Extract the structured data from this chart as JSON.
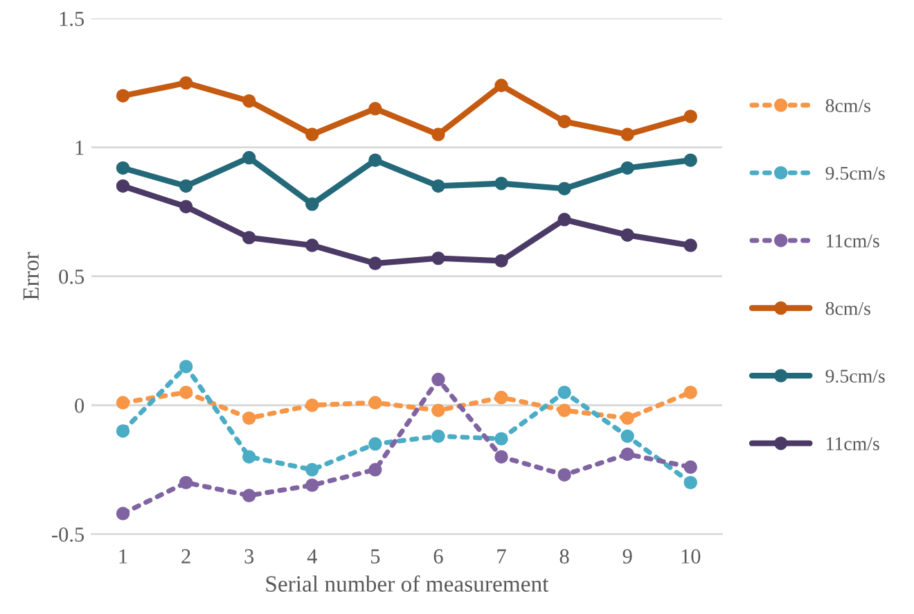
{
  "chart_data": {
    "type": "line",
    "xlabel": "Serial number of measurement",
    "ylabel": "Error",
    "categories": [
      "1",
      "2",
      "3",
      "4",
      "5",
      "6",
      "7",
      "8",
      "9",
      "10"
    ],
    "ylim": [
      -0.5,
      1.5
    ],
    "yticks": [
      {
        "value": -0.5,
        "label": "-0.5"
      },
      0,
      0.5,
      1,
      1.5
    ],
    "grid": "y",
    "legend": "right",
    "marker": "circle",
    "series": [
      {
        "name": "8cm/s",
        "color": "#f79646",
        "line_style": "dotted",
        "values": [
          0.01,
          0.05,
          -0.05,
          0.0,
          0.01,
          -0.02,
          0.03,
          -0.02,
          -0.05,
          0.05
        ]
      },
      {
        "name": "9.5cm/s",
        "color": "#4bacc6",
        "line_style": "dotted",
        "values": [
          -0.1,
          0.15,
          -0.2,
          -0.25,
          -0.15,
          -0.12,
          -0.13,
          0.05,
          -0.12,
          -0.3
        ]
      },
      {
        "name": "11cm/s",
        "color": "#8064a2",
        "line_style": "dotted",
        "values": [
          -0.42,
          -0.3,
          -0.35,
          -0.31,
          -0.25,
          0.1,
          -0.2,
          -0.27,
          -0.19,
          -0.24
        ]
      },
      {
        "name": "8cm/s",
        "color": "#c55a11",
        "line_style": "solid",
        "values": [
          1.2,
          1.25,
          1.18,
          1.05,
          1.15,
          1.05,
          1.24,
          1.1,
          1.05,
          1.12
        ]
      },
      {
        "name": "9.5cm/s",
        "color": "#23697a",
        "line_style": "solid",
        "values": [
          0.92,
          0.85,
          0.96,
          0.78,
          0.95,
          0.85,
          0.86,
          0.84,
          0.92,
          0.95
        ]
      },
      {
        "name": "11cm/s",
        "color": "#4b3a66",
        "line_style": "solid",
        "values": [
          0.85,
          0.77,
          0.65,
          0.62,
          0.55,
          0.57,
          0.56,
          0.72,
          0.66,
          0.62
        ]
      }
    ]
  }
}
